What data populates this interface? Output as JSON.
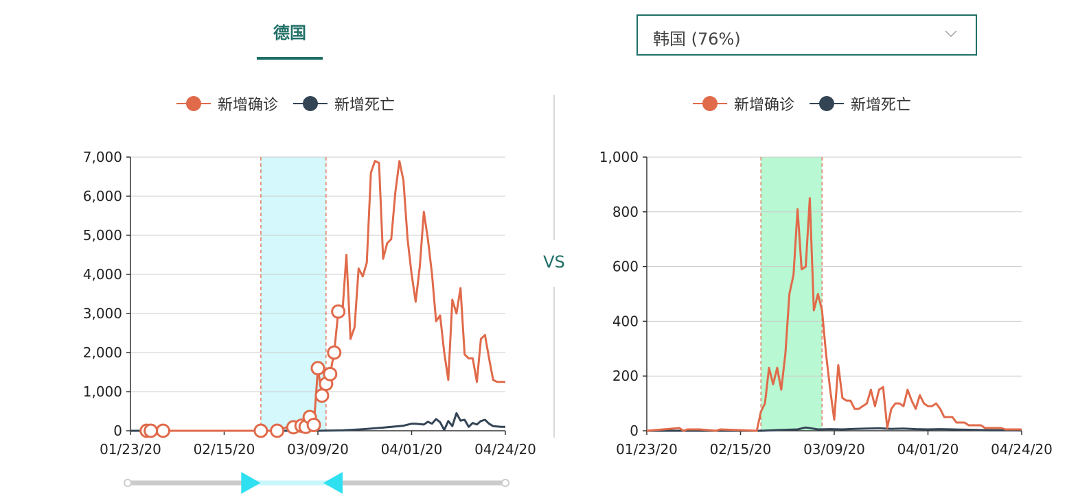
{
  "left_panel": {
    "title": "德国"
  },
  "right_panel": {
    "selector_value": "韩国 (76%)"
  },
  "vs_label": "VS",
  "chart_data": [
    {
      "type": "line",
      "title": "",
      "xlabel": "",
      "ylabel": "",
      "x_ticks": [
        "01/23/20",
        "02/15/20",
        "03/09/20",
        "04/01/20",
        "04/24/20"
      ],
      "x_range": [
        "2020-01-23",
        "2020-04-24"
      ],
      "ylim": [
        0,
        7000
      ],
      "y_ticks": [
        "0",
        "1,000",
        "2,000",
        "3,000",
        "4,000",
        "5,000",
        "6,000",
        "7,000"
      ],
      "grid": true,
      "legend_position": "top-center",
      "highlight_range": [
        "2020-02-24",
        "2020-03-11"
      ],
      "highlight_color": "#d4f8fb",
      "marker_color": "#e06a4a",
      "series": [
        {
          "name": "新增确诊",
          "color": "#e06a4a",
          "x": [
            "2020-01-27",
            "2020-01-28",
            "2020-01-31",
            "2020-02-03",
            "2020-02-24",
            "2020-02-26",
            "2020-02-28",
            "2020-03-01",
            "2020-03-03",
            "2020-03-05",
            "2020-03-06",
            "2020-03-07",
            "2020-03-08",
            "2020-03-09",
            "2020-03-10",
            "2020-03-11",
            "2020-03-12",
            "2020-03-13",
            "2020-03-14",
            "2020-03-15",
            "2020-03-16",
            "2020-03-17",
            "2020-03-18",
            "2020-03-19",
            "2020-03-20",
            "2020-03-21",
            "2020-03-22",
            "2020-03-23",
            "2020-03-24",
            "2020-03-25",
            "2020-03-26",
            "2020-03-27",
            "2020-03-28",
            "2020-03-29",
            "2020-03-30",
            "2020-03-31",
            "2020-04-01",
            "2020-04-02",
            "2020-04-03",
            "2020-04-04",
            "2020-04-05",
            "2020-04-06",
            "2020-04-07",
            "2020-04-08",
            "2020-04-09",
            "2020-04-10",
            "2020-04-11",
            "2020-04-12",
            "2020-04-13",
            "2020-04-14",
            "2020-04-15",
            "2020-04-16",
            "2020-04-17",
            "2020-04-18",
            "2020-04-19",
            "2020-04-20",
            "2020-04-21",
            "2020-04-22",
            "2020-04-23",
            "2020-04-24"
          ],
          "values": [
            0,
            0,
            0,
            0,
            0,
            0,
            0,
            80,
            90,
            130,
            100,
            350,
            150,
            1600,
            900,
            1200,
            1450,
            2000,
            3050,
            3000,
            4500,
            2350,
            2650,
            4150,
            3950,
            4300,
            6600,
            6900,
            6850,
            4400,
            4800,
            4900,
            6100,
            6900,
            6400,
            4900,
            4000,
            3300,
            4200,
            5600,
            4900,
            4000,
            2800,
            2950,
            2000,
            1300,
            3350,
            3000,
            3650,
            1950,
            1850,
            1850,
            1250,
            2350,
            2450,
            1850,
            1300,
            1250,
            1250,
            1250
          ],
          "markers": [
            "2020-01-27",
            "2020-01-28",
            "2020-01-31",
            "2020-02-24",
            "2020-02-28",
            "2020-03-03",
            "2020-03-05",
            "2020-03-06",
            "2020-03-07",
            "2020-03-08",
            "2020-03-09",
            "2020-03-10",
            "2020-03-11",
            "2020-03-12",
            "2020-03-13",
            "2020-03-14"
          ]
        },
        {
          "name": "新增死亡",
          "color": "#334455",
          "x": [
            "2020-01-23",
            "2020-03-09",
            "2020-03-15",
            "2020-03-20",
            "2020-03-25",
            "2020-03-30",
            "2020-04-01",
            "2020-04-02",
            "2020-04-04",
            "2020-04-05",
            "2020-04-06",
            "2020-04-07",
            "2020-04-08",
            "2020-04-09",
            "2020-04-10",
            "2020-04-11",
            "2020-04-12",
            "2020-04-13",
            "2020-04-14",
            "2020-04-15",
            "2020-04-16",
            "2020-04-17",
            "2020-04-18",
            "2020-04-19",
            "2020-04-20",
            "2020-04-21",
            "2020-04-22",
            "2020-04-23",
            "2020-04-24"
          ],
          "values": [
            0,
            0,
            10,
            40,
            80,
            130,
            180,
            180,
            160,
            230,
            180,
            300,
            220,
            20,
            250,
            120,
            450,
            260,
            280,
            100,
            200,
            160,
            250,
            280,
            180,
            120,
            110,
            100,
            100
          ]
        }
      ]
    },
    {
      "type": "line",
      "title": "",
      "xlabel": "",
      "ylabel": "",
      "x_ticks": [
        "01/23/20",
        "02/15/20",
        "03/09/20",
        "04/01/20",
        "04/24/20"
      ],
      "x_range": [
        "2020-01-23",
        "2020-04-24"
      ],
      "ylim": [
        0,
        1000
      ],
      "y_ticks": [
        "0",
        "200",
        "400",
        "600",
        "800",
        "1,000"
      ],
      "grid": true,
      "legend_position": "top-center",
      "highlight_range": [
        "2020-02-20",
        "2020-03-06"
      ],
      "highlight_color": "#b8f8d2",
      "series": [
        {
          "name": "新增确诊",
          "color": "#e06a4a",
          "x": [
            "2020-01-23",
            "2020-01-31",
            "2020-02-01",
            "2020-02-02",
            "2020-02-05",
            "2020-02-09",
            "2020-02-10",
            "2020-02-19",
            "2020-02-20",
            "2020-02-21",
            "2020-02-22",
            "2020-02-23",
            "2020-02-24",
            "2020-02-25",
            "2020-02-26",
            "2020-02-27",
            "2020-02-28",
            "2020-02-29",
            "2020-03-01",
            "2020-03-02",
            "2020-03-03",
            "2020-03-04",
            "2020-03-05",
            "2020-03-06",
            "2020-03-07",
            "2020-03-08",
            "2020-03-09",
            "2020-03-10",
            "2020-03-11",
            "2020-03-12",
            "2020-03-13",
            "2020-03-14",
            "2020-03-15",
            "2020-03-16",
            "2020-03-17",
            "2020-03-18",
            "2020-03-19",
            "2020-03-20",
            "2020-03-21",
            "2020-03-22",
            "2020-03-23",
            "2020-03-24",
            "2020-03-25",
            "2020-03-26",
            "2020-03-27",
            "2020-03-28",
            "2020-03-29",
            "2020-03-30",
            "2020-03-31",
            "2020-04-01",
            "2020-04-02",
            "2020-04-03",
            "2020-04-04",
            "2020-04-05",
            "2020-04-06",
            "2020-04-07",
            "2020-04-08",
            "2020-04-09",
            "2020-04-10",
            "2020-04-11",
            "2020-04-12",
            "2020-04-13",
            "2020-04-14",
            "2020-04-15",
            "2020-04-16",
            "2020-04-17",
            "2020-04-18",
            "2020-04-19",
            "2020-04-20",
            "2020-04-21",
            "2020-04-22",
            "2020-04-23",
            "2020-04-24"
          ],
          "values": [
            0,
            10,
            0,
            5,
            5,
            0,
            5,
            0,
            70,
            100,
            230,
            170,
            230,
            150,
            280,
            500,
            570,
            810,
            590,
            600,
            850,
            440,
            500,
            440,
            280,
            150,
            40,
            240,
            120,
            110,
            110,
            80,
            80,
            90,
            100,
            150,
            90,
            150,
            160,
            10,
            80,
            100,
            100,
            90,
            150,
            110,
            80,
            130,
            100,
            90,
            90,
            100,
            80,
            50,
            50,
            50,
            30,
            30,
            30,
            20,
            20,
            20,
            20,
            10,
            10,
            10,
            10,
            10,
            5,
            5,
            5,
            5,
            5
          ]
        },
        {
          "name": "新增死亡",
          "color": "#334455",
          "x": [
            "2020-01-23",
            "2020-02-20",
            "2020-02-25",
            "2020-02-29",
            "2020-03-02",
            "2020-03-05",
            "2020-03-08",
            "2020-03-11",
            "2020-03-14",
            "2020-03-17",
            "2020-03-20",
            "2020-03-23",
            "2020-03-26",
            "2020-03-29",
            "2020-04-01",
            "2020-04-04",
            "2020-04-07",
            "2020-04-10",
            "2020-04-13",
            "2020-04-16",
            "2020-04-19",
            "2020-04-22",
            "2020-04-24"
          ],
          "values": [
            0,
            0,
            3,
            5,
            12,
            5,
            6,
            5,
            7,
            8,
            9,
            7,
            8,
            6,
            5,
            6,
            5,
            4,
            3,
            2,
            2,
            2,
            1
          ]
        }
      ]
    }
  ]
}
